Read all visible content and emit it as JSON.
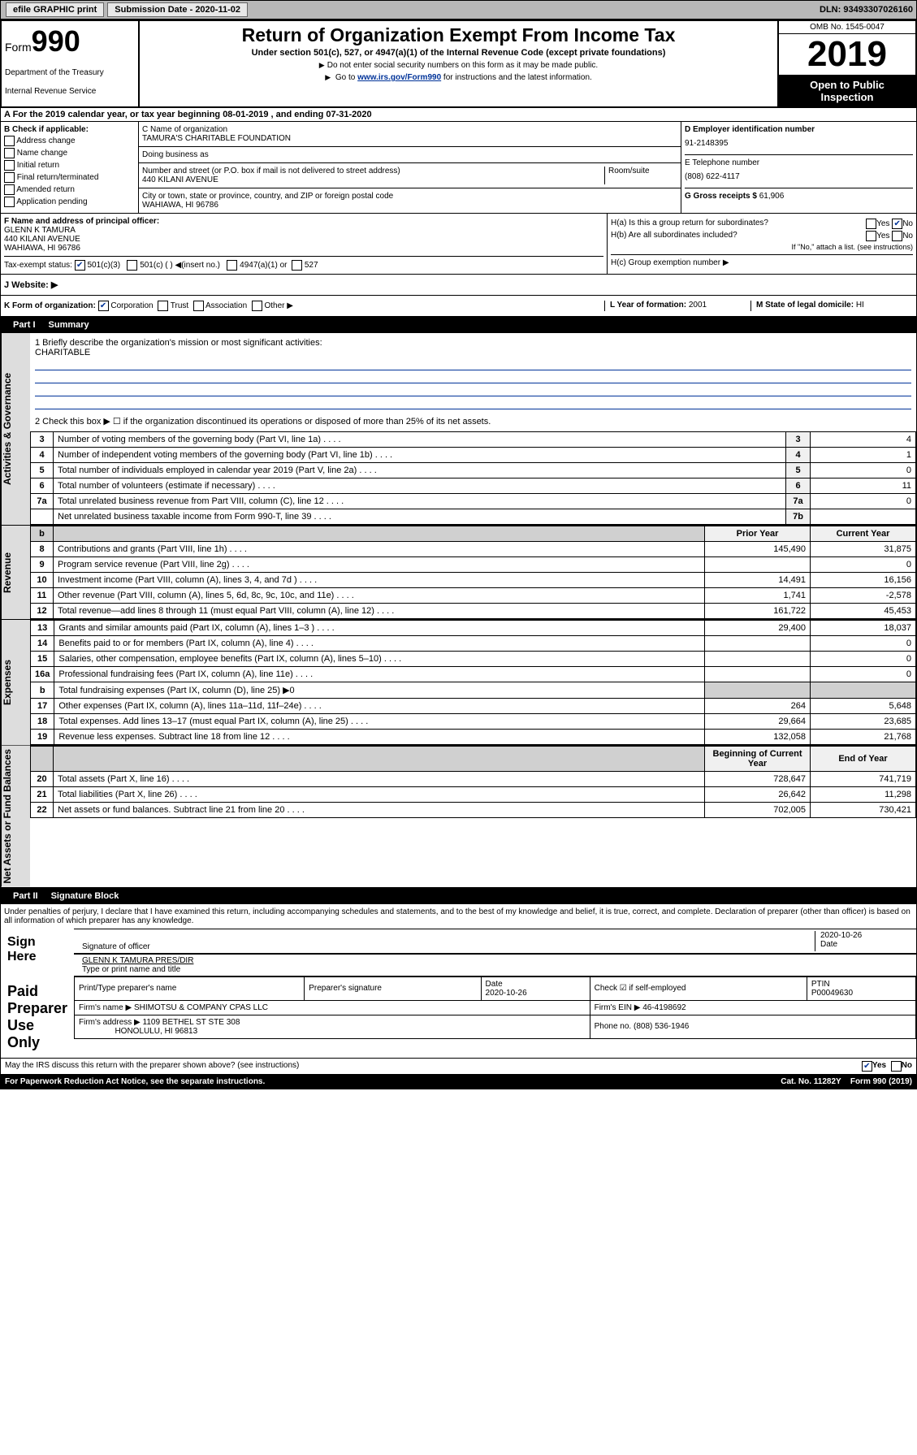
{
  "topbar": {
    "efile": "efile GRAPHIC print",
    "sub_label": "Submission Date - 2020-11-02",
    "dln": "DLN: 93493307026160"
  },
  "header": {
    "form_word": "Form",
    "form_num": "990",
    "dept1": "Department of the Treasury",
    "dept2": "Internal Revenue Service",
    "title": "Return of Organization Exempt From Income Tax",
    "sub": "Under section 501(c), 527, or 4947(a)(1) of the Internal Revenue Code (except private foundations)",
    "instr1": "Do not enter social security numbers on this form as it may be made public.",
    "instr2_pre": "Go to ",
    "instr2_link": "www.irs.gov/Form990",
    "instr2_post": " for instructions and the latest information.",
    "omb": "OMB No. 1545-0047",
    "year": "2019",
    "open": "Open to Public Inspection"
  },
  "secA": "A For the 2019 calendar year, or tax year beginning 08-01-2019    , and ending 07-31-2020",
  "boxB": {
    "head": "B Check if applicable:",
    "opts": [
      "Address change",
      "Name change",
      "Initial return",
      "Final return/terminated",
      "Amended return",
      "Application pending"
    ]
  },
  "boxC": {
    "name_label": "C Name of organization",
    "name": "TAMURA'S CHARITABLE FOUNDATION",
    "dba": "Doing business as",
    "street_label": "Number and street (or P.O. box if mail is not delivered to street address)",
    "room_label": "Room/suite",
    "street": "440 KILANI AVENUE",
    "city_label": "City or town, state or province, country, and ZIP or foreign postal code",
    "city": "WAHIAWA, HI  96786"
  },
  "boxD": {
    "label": "D Employer identification number",
    "val": "91-2148395"
  },
  "boxE": {
    "label": "E Telephone number",
    "val": "(808) 622-4117"
  },
  "boxG": {
    "label": "G Gross receipts $",
    "val": "61,906"
  },
  "boxF": {
    "label": "F  Name and address of principal officer:",
    "name": "GLENN K TAMURA",
    "addr1": "440 KILANI AVENUE",
    "addr2": "WAHIAWA, HI  96786"
  },
  "boxH": {
    "a": "H(a)  Is this a group return for subordinates?",
    "b": "H(b)  Are all subordinates included?",
    "note": "If \"No,\" attach a list. (see instructions)",
    "c": "H(c)  Group exemption number ▶",
    "yes": "Yes",
    "no": "No"
  },
  "taxrow": {
    "label": "Tax-exempt status:",
    "o1": "501(c)(3)",
    "o2": "501(c) (  ) ◀(insert no.)",
    "o3": "4947(a)(1) or",
    "o4": "527"
  },
  "rowJ": "J   Website: ▶",
  "rowK": {
    "k": "K Form of organization:",
    "opts": [
      "Corporation",
      "Trust",
      "Association",
      "Other ▶"
    ],
    "l_label": "L Year of formation:",
    "l_val": "2001",
    "m_label": "M State of legal domicile:",
    "m_val": "HI"
  },
  "part1": {
    "label": "Part I",
    "title": "Summary"
  },
  "mission": {
    "q1": "1  Briefly describe the organization's mission or most significant activities:",
    "ans": "CHARITABLE",
    "q2": "2   Check this box ▶ ☐  if the organization discontinued its operations or disposed of more than 25% of its net assets."
  },
  "gov_lines": [
    {
      "n": "3",
      "label": "Number of voting members of the governing body (Part VI, line 1a)",
      "ref": "3",
      "v": "4"
    },
    {
      "n": "4",
      "label": "Number of independent voting members of the governing body (Part VI, line 1b)",
      "ref": "4",
      "v": "1"
    },
    {
      "n": "5",
      "label": "Total number of individuals employed in calendar year 2019 (Part V, line 2a)",
      "ref": "5",
      "v": "0"
    },
    {
      "n": "6",
      "label": "Total number of volunteers (estimate if necessary)",
      "ref": "6",
      "v": "11"
    },
    {
      "n": "7a",
      "label": "Total unrelated business revenue from Part VIII, column (C), line 12",
      "ref": "7a",
      "v": "0"
    },
    {
      "n": "",
      "label": "Net unrelated business taxable income from Form 990-T, line 39",
      "ref": "7b",
      "v": ""
    }
  ],
  "rev_head": {
    "b": "b",
    "prior": "Prior Year",
    "current": "Current Year"
  },
  "rev_lines": [
    {
      "n": "8",
      "label": "Contributions and grants (Part VIII, line 1h)",
      "p": "145,490",
      "c": "31,875"
    },
    {
      "n": "9",
      "label": "Program service revenue (Part VIII, line 2g)",
      "p": "",
      "c": "0"
    },
    {
      "n": "10",
      "label": "Investment income (Part VIII, column (A), lines 3, 4, and 7d )",
      "p": "14,491",
      "c": "16,156"
    },
    {
      "n": "11",
      "label": "Other revenue (Part VIII, column (A), lines 5, 6d, 8c, 9c, 10c, and 11e)",
      "p": "1,741",
      "c": "-2,578"
    },
    {
      "n": "12",
      "label": "Total revenue—add lines 8 through 11 (must equal Part VIII, column (A), line 12)",
      "p": "161,722",
      "c": "45,453"
    }
  ],
  "exp_lines": [
    {
      "n": "13",
      "label": "Grants and similar amounts paid (Part IX, column (A), lines 1–3 )",
      "p": "29,400",
      "c": "18,037"
    },
    {
      "n": "14",
      "label": "Benefits paid to or for members (Part IX, column (A), line 4)",
      "p": "",
      "c": "0"
    },
    {
      "n": "15",
      "label": "Salaries, other compensation, employee benefits (Part IX, column (A), lines 5–10)",
      "p": "",
      "c": "0"
    },
    {
      "n": "16a",
      "label": "Professional fundraising fees (Part IX, column (A), line 11e)",
      "p": "",
      "c": "0"
    }
  ],
  "exp_16b": {
    "n": "b",
    "label": "Total fundraising expenses (Part IX, column (D), line 25) ▶0"
  },
  "exp_lines2": [
    {
      "n": "17",
      "label": "Other expenses (Part IX, column (A), lines 11a–11d, 11f–24e)",
      "p": "264",
      "c": "5,648"
    },
    {
      "n": "18",
      "label": "Total expenses. Add lines 13–17 (must equal Part IX, column (A), line 25)",
      "p": "29,664",
      "c": "23,685"
    },
    {
      "n": "19",
      "label": "Revenue less expenses. Subtract line 18 from line 12",
      "p": "132,058",
      "c": "21,768"
    }
  ],
  "net_head": {
    "b": "Beginning of Current Year",
    "e": "End of Year"
  },
  "net_lines": [
    {
      "n": "20",
      "label": "Total assets (Part X, line 16)",
      "p": "728,647",
      "c": "741,719"
    },
    {
      "n": "21",
      "label": "Total liabilities (Part X, line 26)",
      "p": "26,642",
      "c": "11,298"
    },
    {
      "n": "22",
      "label": "Net assets or fund balances. Subtract line 21 from line 20",
      "p": "702,005",
      "c": "730,421"
    }
  ],
  "part2": {
    "label": "Part II",
    "title": "Signature Block"
  },
  "perjury": "Under penalties of perjury, I declare that I have examined this return, including accompanying schedules and statements, and to the best of my knowledge and belief, it is true, correct, and complete. Declaration of preparer (other than officer) is based on all information of which preparer has any knowledge.",
  "sign": {
    "here": "Sign Here",
    "date": "2020-10-26",
    "date_label": "Date",
    "sig_label": "Signature of officer",
    "name": "GLENN K TAMURA  PRES/DIR",
    "name_label": "Type or print name and title"
  },
  "preparer": {
    "side": "Paid Preparer Use Only",
    "h1": "Print/Type preparer's name",
    "h2": "Preparer's signature",
    "h3": "Date",
    "h4": "Check ☑ if self-employed",
    "h5": "PTIN",
    "date": "2020-10-26",
    "ptin": "P00049630",
    "firm_name_label": "Firm's name   ▶",
    "firm_name": "SHIMOTSU & COMPANY CPAS LLC",
    "ein_label": "Firm's EIN ▶",
    "ein": "46-4198692",
    "addr_label": "Firm's address ▶",
    "addr1": "1109 BETHEL ST STE 308",
    "addr2": "HONOLULU, HI  96813",
    "phone_label": "Phone no.",
    "phone": "(808) 536-1946"
  },
  "discuss": {
    "q": "May the IRS discuss this return with the preparer shown above? (see instructions)",
    "yes": "Yes",
    "no": "No"
  },
  "footer": {
    "pra": "For Paperwork Reduction Act Notice, see the separate instructions.",
    "cat": "Cat. No. 11282Y",
    "form": "Form 990 (2019)"
  }
}
